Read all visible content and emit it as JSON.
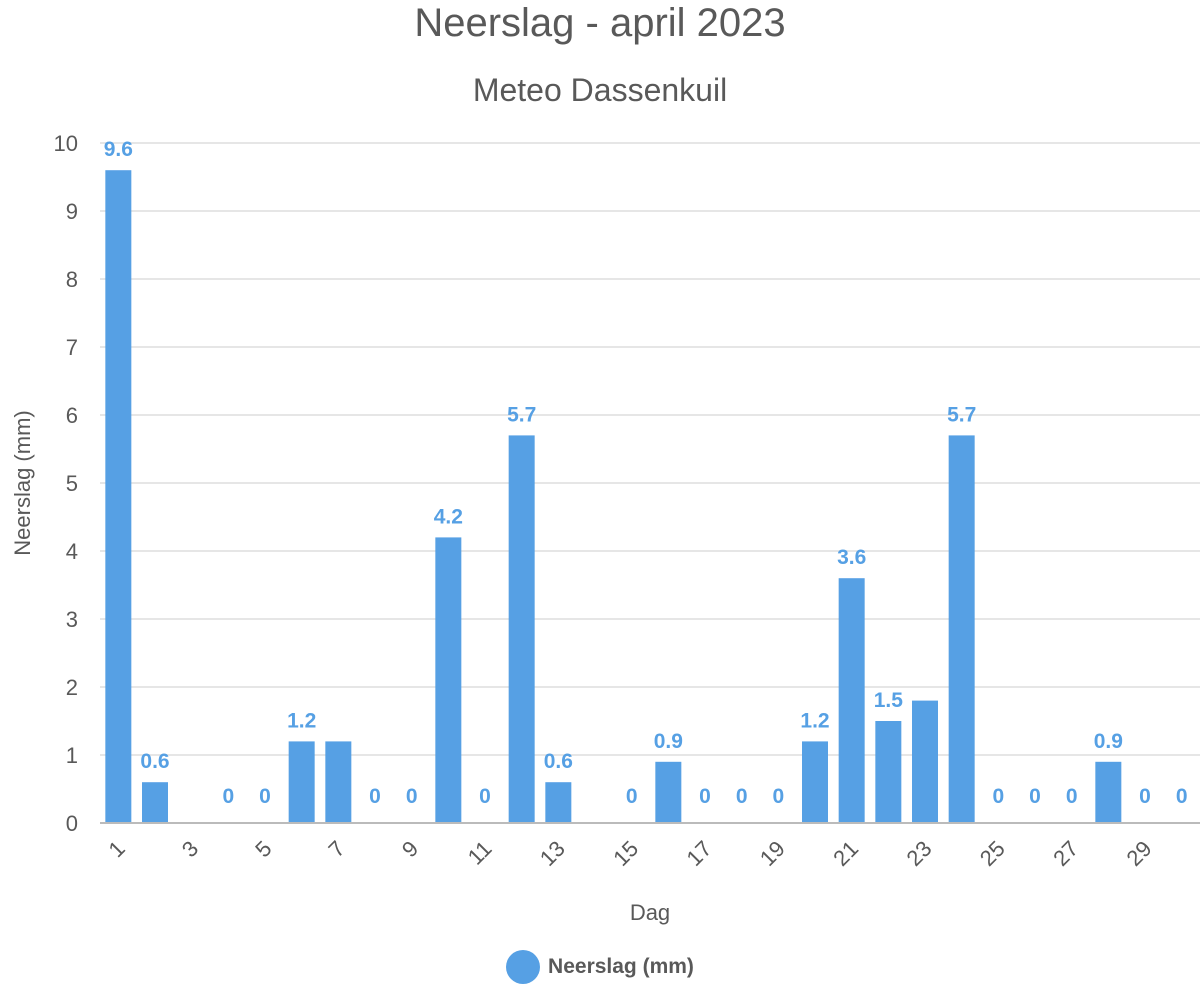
{
  "chart_data": {
    "type": "bar",
    "title": "Neerslag - april 2023",
    "subtitle": "Meteo Dassenkuil",
    "xlabel": "Dag",
    "ylabel": "Neerslag (mm)",
    "ylim": [
      0,
      10
    ],
    "yticks": [
      "0",
      "1",
      "2",
      "3",
      "4",
      "5",
      "6",
      "7",
      "8",
      "9",
      "10"
    ],
    "categories": [
      "1",
      "2",
      "3",
      "4",
      "5",
      "6",
      "7",
      "8",
      "9",
      "10",
      "11",
      "12",
      "13",
      "14",
      "15",
      "16",
      "17",
      "18",
      "19",
      "20",
      "21",
      "22",
      "23",
      "24",
      "25",
      "26",
      "27",
      "28",
      "29",
      "30"
    ],
    "xtick_labels": [
      "1",
      "3",
      "5",
      "7",
      "9",
      "11",
      "13",
      "15",
      "17",
      "19",
      "21",
      "23",
      "25",
      "27",
      "29"
    ],
    "series": [
      {
        "name": "Neerslag (mm)",
        "color": "#56a0e4",
        "values": [
          9.6,
          0.6,
          0,
          0,
          0,
          1.2,
          1.2,
          0,
          0,
          4.2,
          0,
          5.7,
          0.6,
          0,
          0,
          0.9,
          0,
          0,
          0,
          1.2,
          3.6,
          1.5,
          1.8,
          5.7,
          0,
          0,
          0,
          0.9,
          0,
          0
        ],
        "data_labels": [
          "9.6",
          "0.6",
          "",
          "0",
          "0",
          "1.2",
          "",
          "0",
          "0",
          "4.2",
          "0",
          "5.7",
          "0.6",
          "",
          "0",
          "0.9",
          "0",
          "0",
          "0",
          "1.2",
          "3.6",
          "1.5",
          "",
          "5.7",
          "0",
          "0",
          "0",
          "0.9",
          "0",
          "0"
        ]
      }
    ],
    "grid": true,
    "legend": "bottom-center"
  }
}
